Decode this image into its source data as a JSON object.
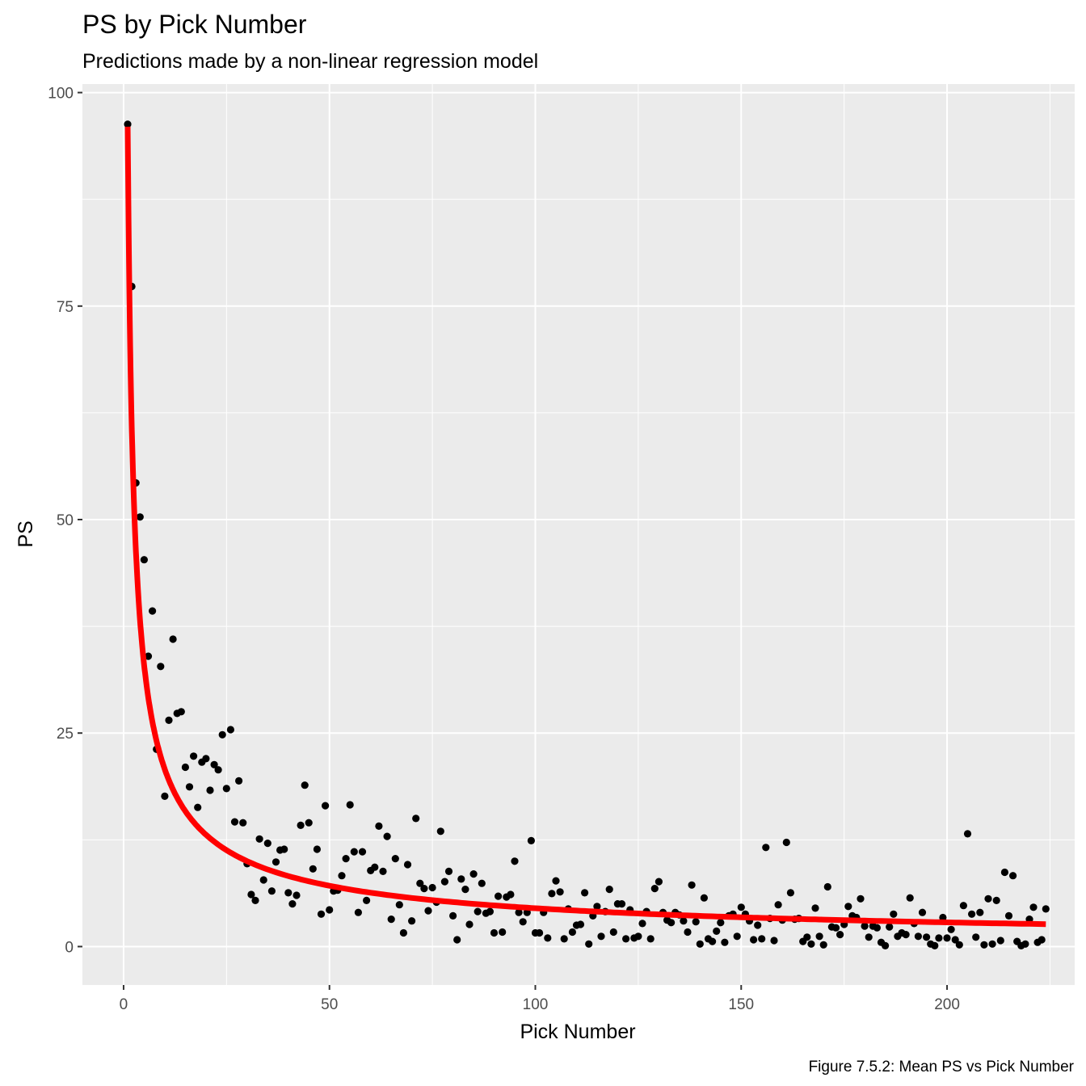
{
  "chart_data": {
    "type": "scatter",
    "title": "PS by Pick Number",
    "subtitle": "Predictions made by a non-linear regression model",
    "xlabel": "Pick Number",
    "ylabel": "PS",
    "caption": "Figure 7.5.2: Mean PS vs Pick Number",
    "xlim": [
      -10,
      231
    ],
    "ylim": [
      -4.5,
      101
    ],
    "x_ticks": [
      0,
      50,
      100,
      150,
      200
    ],
    "y_ticks": [
      0,
      25,
      50,
      75,
      100
    ],
    "x_tick_labels": [
      "0",
      "50",
      "100",
      "150",
      "200"
    ],
    "y_tick_labels": [
      "0",
      "25",
      "50",
      "75",
      "100"
    ],
    "grid": true,
    "colors": {
      "panel": "#ebebeb",
      "grid": "#ffffff",
      "points": "#000000",
      "fit_line": "#ff0000"
    },
    "points": [
      [
        1,
        96.3
      ],
      [
        2,
        77.3
      ],
      [
        3,
        54.3
      ],
      [
        4,
        50.3
      ],
      [
        5,
        45.3
      ],
      [
        6,
        34
      ],
      [
        7,
        39.3
      ],
      [
        8,
        23.1
      ],
      [
        9,
        32.8
      ],
      [
        10,
        17.6
      ],
      [
        11,
        26.5
      ],
      [
        12,
        36
      ],
      [
        13,
        27.3
      ],
      [
        14,
        27.5
      ],
      [
        15,
        21
      ],
      [
        16,
        18.7
      ],
      [
        17,
        22.3
      ],
      [
        18,
        16.3
      ],
      [
        19,
        21.6
      ],
      [
        20,
        22
      ],
      [
        21,
        18.3
      ],
      [
        22,
        21.3
      ],
      [
        23,
        20.7
      ],
      [
        24,
        24.8
      ],
      [
        25,
        18.5
      ],
      [
        26,
        25.4
      ],
      [
        27,
        14.6
      ],
      [
        28,
        19.4
      ],
      [
        29,
        14.5
      ],
      [
        30,
        9.7
      ],
      [
        31,
        6.1
      ],
      [
        32,
        5.4
      ],
      [
        33,
        12.6
      ],
      [
        34,
        7.8
      ],
      [
        35,
        12.1
      ],
      [
        36,
        6.5
      ],
      [
        37,
        9.9
      ],
      [
        38,
        11.3
      ],
      [
        39,
        11.4
      ],
      [
        40,
        6.3
      ],
      [
        41,
        5
      ],
      [
        42,
        6
      ],
      [
        43,
        14.2
      ],
      [
        44,
        18.9
      ],
      [
        45,
        14.5
      ],
      [
        46,
        9.1
      ],
      [
        47,
        11.4
      ],
      [
        48,
        3.8
      ],
      [
        49,
        16.5
      ],
      [
        50,
        4.3
      ],
      [
        51,
        6.5
      ],
      [
        52,
        6.6
      ],
      [
        53,
        8.3
      ],
      [
        54,
        10.3
      ],
      [
        55,
        16.6
      ],
      [
        56,
        11.1
      ],
      [
        57,
        4
      ],
      [
        58,
        11.1
      ],
      [
        59,
        5.4
      ],
      [
        60,
        8.9
      ],
      [
        61,
        9.3
      ],
      [
        62,
        14.1
      ],
      [
        63,
        8.8
      ],
      [
        64,
        12.9
      ],
      [
        65,
        3.2
      ],
      [
        66,
        10.3
      ],
      [
        67,
        4.9
      ],
      [
        68,
        1.6
      ],
      [
        69,
        9.6
      ],
      [
        70,
        3
      ],
      [
        71,
        15
      ],
      [
        72,
        7.4
      ],
      [
        73,
        6.8
      ],
      [
        74,
        4.2
      ],
      [
        75,
        6.9
      ],
      [
        76,
        5.2
      ],
      [
        77,
        13.5
      ],
      [
        78,
        7.6
      ],
      [
        79,
        8.8
      ],
      [
        80,
        3.6
      ],
      [
        81,
        0.8
      ],
      [
        82,
        7.9
      ],
      [
        83,
        6.7
      ],
      [
        84,
        2.6
      ],
      [
        85,
        8.5
      ],
      [
        86,
        4.1
      ],
      [
        87,
        7.4
      ],
      [
        88,
        3.9
      ],
      [
        89,
        4.1
      ],
      [
        90,
        1.6
      ],
      [
        91,
        5.9
      ],
      [
        92,
        1.7
      ],
      [
        93,
        5.8
      ],
      [
        94,
        6.1
      ],
      [
        95,
        10
      ],
      [
        96,
        4
      ],
      [
        97,
        2.9
      ],
      [
        98,
        4
      ],
      [
        99,
        12.4
      ],
      [
        100,
        1.6
      ],
      [
        101,
        1.6
      ],
      [
        102,
        4
      ],
      [
        103,
        1
      ],
      [
        104,
        6.2
      ],
      [
        105,
        7.7
      ],
      [
        106,
        6.4
      ],
      [
        107,
        0.9
      ],
      [
        108,
        4.4
      ],
      [
        109,
        1.7
      ],
      [
        110,
        2.5
      ],
      [
        111,
        2.6
      ],
      [
        112,
        6.3
      ],
      [
        113,
        0.3
      ],
      [
        114,
        3.6
      ],
      [
        115,
        4.7
      ],
      [
        116,
        1.2
      ],
      [
        117,
        4.1
      ],
      [
        118,
        6.7
      ],
      [
        119,
        1.7
      ],
      [
        120,
        5
      ],
      [
        121,
        5
      ],
      [
        122,
        0.9
      ],
      [
        123,
        4.3
      ],
      [
        124,
        1
      ],
      [
        125,
        1.2
      ],
      [
        126,
        2.7
      ],
      [
        127,
        4.1
      ],
      [
        128,
        0.9
      ],
      [
        129,
        6.8
      ],
      [
        130,
        7.6
      ],
      [
        131,
        4
      ],
      [
        132,
        3.1
      ],
      [
        133,
        2.8
      ],
      [
        134,
        4
      ],
      [
        135,
        3.7
      ],
      [
        136,
        3
      ],
      [
        137,
        1.7
      ],
      [
        138,
        7.2
      ],
      [
        139,
        2.9
      ],
      [
        140,
        0.3
      ],
      [
        141,
        5.7
      ],
      [
        142,
        0.9
      ],
      [
        143,
        0.6
      ],
      [
        144,
        1.8
      ],
      [
        145,
        2.8
      ],
      [
        146,
        0.5
      ],
      [
        147,
        3.6
      ],
      [
        148,
        3.8
      ],
      [
        149,
        1.2
      ],
      [
        150,
        4.6
      ],
      [
        151,
        3.8
      ],
      [
        152,
        3
      ],
      [
        153,
        0.8
      ],
      [
        154,
        2.5
      ],
      [
        155,
        0.9
      ],
      [
        156,
        11.6
      ],
      [
        157,
        3.3
      ],
      [
        158,
        0.7
      ],
      [
        159,
        4.9
      ],
      [
        160,
        3.1
      ],
      [
        161,
        12.2
      ],
      [
        162,
        6.3
      ],
      [
        163,
        3.2
      ],
      [
        164,
        3.3
      ],
      [
        165,
        0.6
      ],
      [
        166,
        1.1
      ],
      [
        167,
        0.3
      ],
      [
        168,
        4.5
      ],
      [
        169,
        1.2
      ],
      [
        170,
        0.2
      ],
      [
        171,
        7
      ],
      [
        172,
        2.3
      ],
      [
        173,
        2.2
      ],
      [
        174,
        1.4
      ],
      [
        175,
        2.6
      ],
      [
        176,
        4.7
      ],
      [
        177,
        3.6
      ],
      [
        178,
        3.4
      ],
      [
        179,
        5.6
      ],
      [
        180,
        2.4
      ],
      [
        181,
        1.1
      ],
      [
        182,
        2.4
      ],
      [
        183,
        2.2
      ],
      [
        184,
        0.5
      ],
      [
        185,
        0.1
      ],
      [
        186,
        2.3
      ],
      [
        187,
        3.8
      ],
      [
        188,
        1.2
      ],
      [
        189,
        1.6
      ],
      [
        190,
        1.4
      ],
      [
        191,
        5.7
      ],
      [
        192,
        2.7
      ],
      [
        193,
        1.2
      ],
      [
        194,
        4
      ],
      [
        195,
        1.1
      ],
      [
        196,
        0.3
      ],
      [
        197,
        0.1
      ],
      [
        198,
        1
      ],
      [
        199,
        3.4
      ],
      [
        200,
        1
      ],
      [
        201,
        2
      ],
      [
        202,
        0.8
      ],
      [
        203,
        0.2
      ],
      [
        204,
        4.8
      ],
      [
        205,
        13.2
      ],
      [
        206,
        3.8
      ],
      [
        207,
        1.1
      ],
      [
        208,
        4
      ],
      [
        209,
        0.2
      ],
      [
        210,
        5.6
      ],
      [
        211,
        0.3
      ],
      [
        212,
        5.4
      ],
      [
        213,
        0.7
      ],
      [
        214,
        8.7
      ],
      [
        215,
        3.6
      ],
      [
        216,
        8.3
      ],
      [
        217,
        0.6
      ],
      [
        218,
        0.1
      ],
      [
        219,
        0.3
      ],
      [
        220,
        3.2
      ],
      [
        221,
        4.6
      ],
      [
        222,
        0.5
      ],
      [
        223,
        0.8
      ],
      [
        224,
        4.4
      ]
    ],
    "fit_line": {
      "model": "y = a * x^b",
      "a": 96,
      "b": -0.665,
      "x_range": [
        1,
        224
      ]
    }
  }
}
